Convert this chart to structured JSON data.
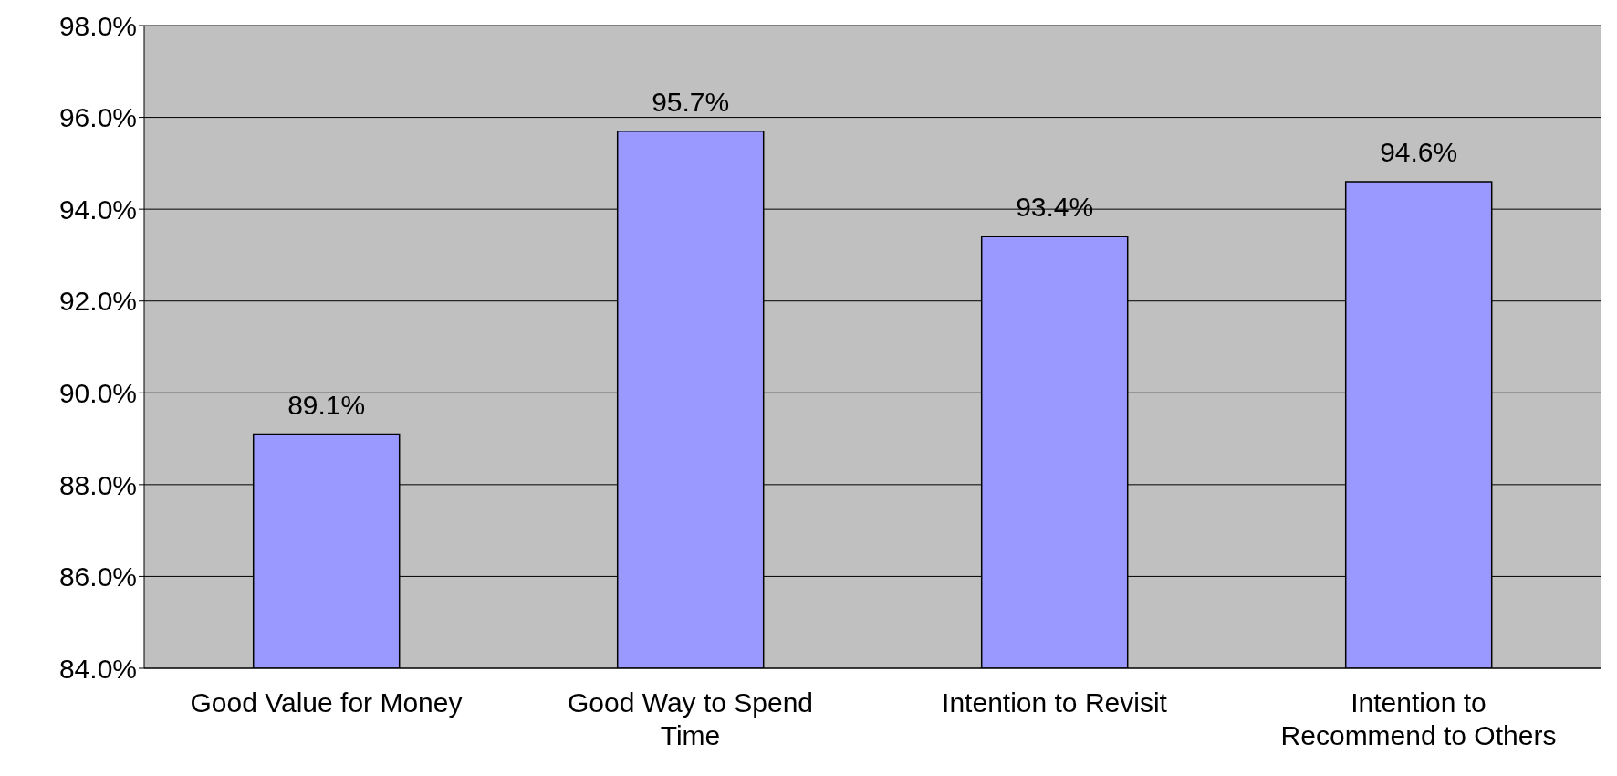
{
  "chart_data": {
    "type": "bar",
    "categories": [
      "Good Value for Money",
      "Good Way to Spend Time",
      "Intention to Revisit",
      "Intention to Recommend to Others"
    ],
    "values": [
      89.1,
      95.7,
      93.4,
      94.6
    ],
    "value_labels": [
      "89.1%",
      "95.7%",
      "93.4%",
      "94.6%"
    ],
    "color": "#9999ff",
    "ylim": [
      84,
      98
    ],
    "yticks": [
      {
        "value": 84,
        "label": "84.0%"
      },
      {
        "value": 86,
        "label": "86.0%"
      },
      {
        "value": 88,
        "label": "88.0%"
      },
      {
        "value": 90,
        "label": "90.0%"
      },
      {
        "value": 92,
        "label": "92.0%"
      },
      {
        "value": 94,
        "label": "94.0%"
      },
      {
        "value": 96,
        "label": "96.0%"
      },
      {
        "value": 98,
        "label": "98.0%"
      }
    ],
    "grid": "y",
    "legend": false
  }
}
